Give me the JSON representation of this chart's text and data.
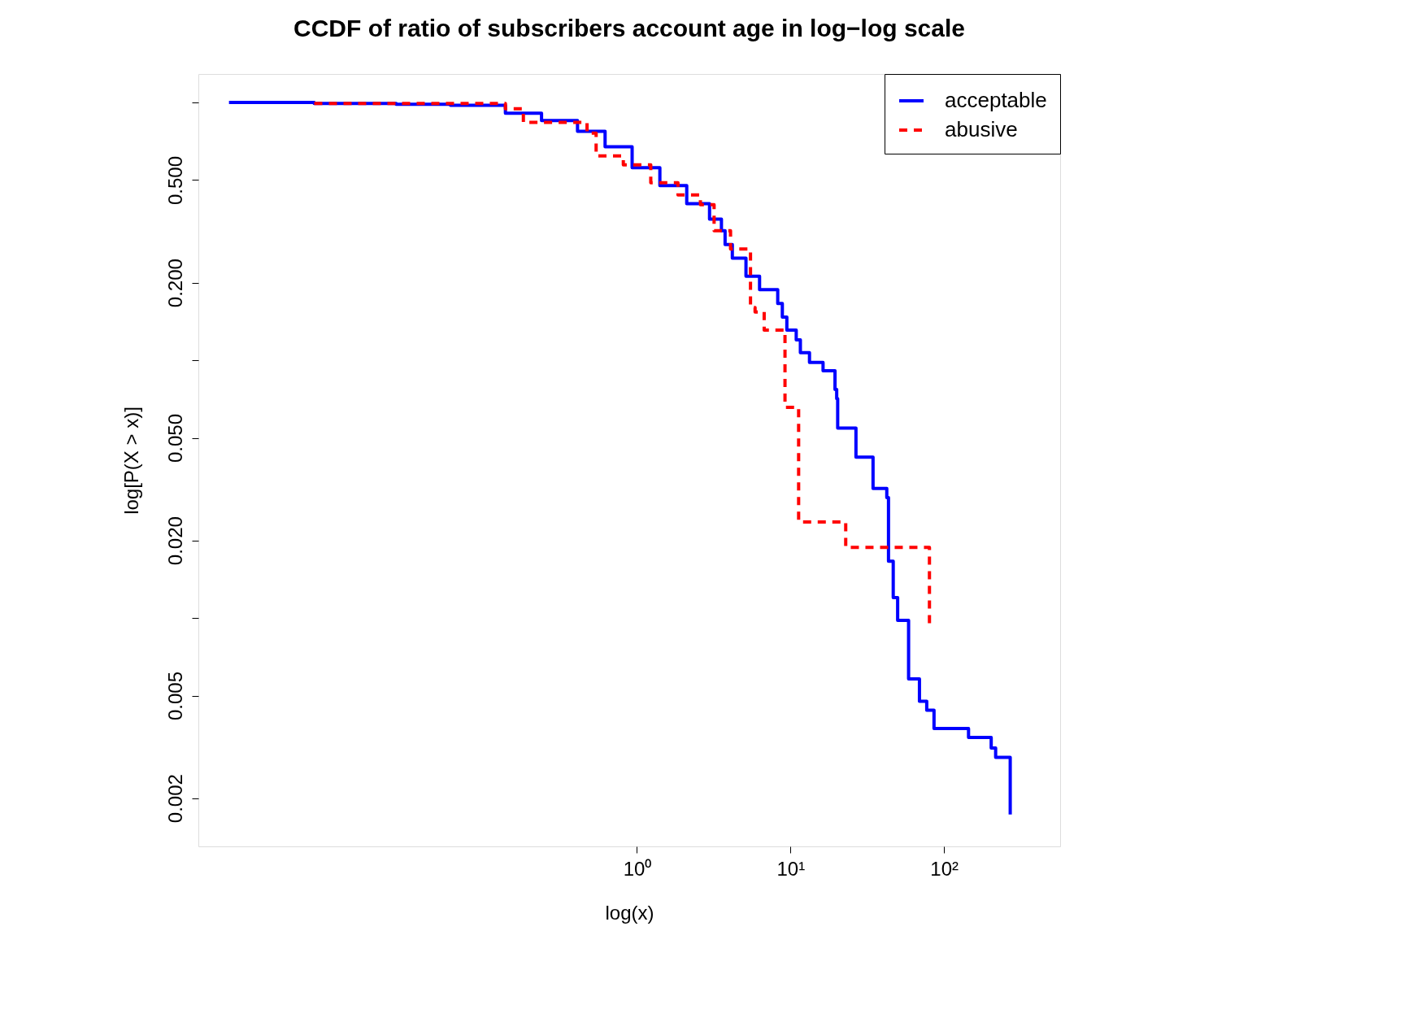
{
  "chart_data": {
    "type": "step",
    "title": "CCDF of ratio of subscribers account age in log−log scale",
    "xlabel": "log(x)",
    "ylabel": "log[P(X > x)]",
    "log": "xy",
    "xlim": [
      0.00139,
      571
    ],
    "ylim": [
      0.0013,
      1.29
    ],
    "xticks": [
      {
        "value": 1,
        "label": "10⁰"
      },
      {
        "value": 10,
        "label": "10¹"
      },
      {
        "value": 100,
        "label": "10²"
      }
    ],
    "yticks": [
      {
        "value": 0.002,
        "label": "0.002"
      },
      {
        "value": 0.005,
        "label": "0.005"
      },
      {
        "value": 0.01,
        "label": null
      },
      {
        "value": 0.02,
        "label": "0.020"
      },
      {
        "value": 0.05,
        "label": "0.050"
      },
      {
        "value": 0.1,
        "label": null
      },
      {
        "value": 0.2,
        "label": "0.200"
      },
      {
        "value": 0.5,
        "label": "0.500"
      },
      {
        "value": 1,
        "label": null
      }
    ],
    "grid": false,
    "legend": "top right",
    "marker": "none",
    "series": [
      {
        "name": "acceptable",
        "color": "#0000ff",
        "line_style": "solid",
        "x": [
          0.0022,
          0.0079,
          0.027,
          0.061,
          0.139,
          0.239,
          0.41,
          0.62,
          0.93,
          1.41,
          2.11,
          2.97,
          3.55,
          3.75,
          4.18,
          5.13,
          6.29,
          8.26,
          8.85,
          9.47,
          10.9,
          11.6,
          13.3,
          16.3,
          19.5,
          20.0,
          20.3,
          26.7,
          34.5,
          42.4,
          43.5,
          46.7,
          49.9,
          58.8,
          69.2,
          77.2,
          86.1,
          144.5,
          203,
          217,
          270,
          270
        ],
        "values": [
          1.0,
          0.992,
          0.984,
          0.976,
          0.908,
          0.851,
          0.773,
          0.673,
          0.559,
          0.476,
          0.405,
          0.353,
          0.318,
          0.281,
          0.249,
          0.212,
          0.188,
          0.166,
          0.147,
          0.131,
          0.12,
          0.107,
          0.098,
          0.091,
          0.077,
          0.071,
          0.0546,
          0.0421,
          0.0318,
          0.0293,
          0.0166,
          0.012,
          0.0098,
          0.0058,
          0.00475,
          0.00439,
          0.00373,
          0.00344,
          0.00313,
          0.00288,
          0.00288,
          0.00173
        ]
      },
      {
        "name": "abusive",
        "color": "#ff0000",
        "line_style": "dashed",
        "x": [
          0.0079,
          0.139,
          0.182,
          0.473,
          0.542,
          0.815,
          1.23,
          1.85,
          2.59,
          3.18,
          4.07,
          5.49,
          5.88,
          6.74,
          9.21,
          11.3,
          22.9,
          80.4,
          80.4
        ],
        "values": [
          0.992,
          0.945,
          0.837,
          0.76,
          0.621,
          0.573,
          0.488,
          0.438,
          0.401,
          0.318,
          0.27,
          0.16,
          0.154,
          0.131,
          0.0657,
          0.0236,
          0.0188,
          0.0188,
          0.0094
        ]
      }
    ]
  }
}
